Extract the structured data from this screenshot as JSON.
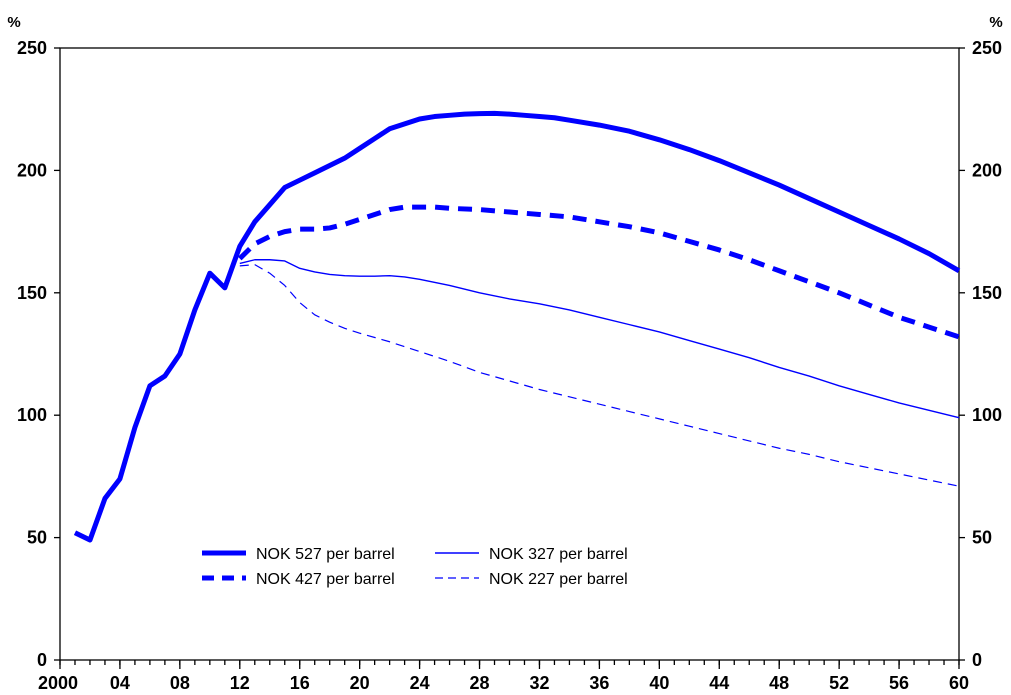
{
  "chart_data": {
    "type": "line",
    "y_unit_left": "%",
    "y_unit_right": "%",
    "ylim": [
      0,
      250
    ],
    "y_ticks": [
      0,
      50,
      100,
      150,
      200,
      250
    ],
    "y_tick_labels": [
      "0",
      "50",
      "100",
      "150",
      "200",
      "250"
    ],
    "xlim": [
      2000,
      2060
    ],
    "x_ticks": [
      2000,
      2004,
      2008,
      2012,
      2016,
      2020,
      2024,
      2028,
      2032,
      2036,
      2040,
      2044,
      2048,
      2052,
      2056,
      2060
    ],
    "x_tick_labels": [
      "2000",
      "04",
      "08",
      "12",
      "16",
      "20",
      "24",
      "28",
      "32",
      "36",
      "40",
      "44",
      "48",
      "52",
      "56",
      "60"
    ],
    "grid": false,
    "legend_position": "lower-left",
    "series": [
      {
        "name": "NOK 527 per barrel",
        "style": "solid-thick",
        "color": "#0000ff",
        "points": [
          [
            2001,
            52
          ],
          [
            2002,
            49
          ],
          [
            2003,
            66
          ],
          [
            2004,
            74
          ],
          [
            2005,
            95
          ],
          [
            2006,
            112
          ],
          [
            2007,
            116
          ],
          [
            2008,
            125
          ],
          [
            2009,
            143
          ],
          [
            2010,
            158
          ],
          [
            2011,
            152
          ],
          [
            2012,
            169
          ],
          [
            2013,
            179
          ],
          [
            2014,
            186
          ],
          [
            2015,
            193
          ],
          [
            2016,
            196
          ],
          [
            2017,
            199
          ],
          [
            2018,
            202
          ],
          [
            2019,
            205
          ],
          [
            2020,
            209
          ],
          [
            2021,
            213
          ],
          [
            2022,
            217
          ],
          [
            2023,
            219
          ],
          [
            2024,
            221
          ],
          [
            2025,
            222
          ],
          [
            2026,
            222.5
          ],
          [
            2027,
            223
          ],
          [
            2028,
            223.2
          ],
          [
            2029,
            223.3
          ],
          [
            2030,
            223
          ],
          [
            2031,
            222.5
          ],
          [
            2032,
            222
          ],
          [
            2033,
            221.5
          ],
          [
            2034,
            220.5
          ],
          [
            2036,
            218.5
          ],
          [
            2038,
            216
          ],
          [
            2040,
            212.5
          ],
          [
            2042,
            208.5
          ],
          [
            2044,
            204
          ],
          [
            2046,
            199
          ],
          [
            2048,
            194
          ],
          [
            2050,
            188.5
          ],
          [
            2052,
            183
          ],
          [
            2054,
            177.5
          ],
          [
            2056,
            172
          ],
          [
            2058,
            166
          ],
          [
            2060,
            159
          ]
        ]
      },
      {
        "name": "NOK 427 per barrel",
        "style": "dashed-thick",
        "color": "#0000ff",
        "points": [
          [
            2012,
            164
          ],
          [
            2013,
            170
          ],
          [
            2014,
            173
          ],
          [
            2015,
            175
          ],
          [
            2016,
            176
          ],
          [
            2017,
            176
          ],
          [
            2018,
            176.5
          ],
          [
            2019,
            178
          ],
          [
            2020,
            180
          ],
          [
            2021,
            182
          ],
          [
            2022,
            184
          ],
          [
            2023,
            185
          ],
          [
            2024,
            185
          ],
          [
            2025,
            185
          ],
          [
            2026,
            184.5
          ],
          [
            2028,
            184
          ],
          [
            2030,
            183
          ],
          [
            2032,
            182
          ],
          [
            2034,
            181
          ],
          [
            2036,
            179
          ],
          [
            2038,
            177
          ],
          [
            2040,
            174.5
          ],
          [
            2042,
            171
          ],
          [
            2044,
            167.5
          ],
          [
            2046,
            163.5
          ],
          [
            2048,
            159
          ],
          [
            2050,
            154.5
          ],
          [
            2052,
            150
          ],
          [
            2054,
            145
          ],
          [
            2056,
            140
          ],
          [
            2058,
            136
          ],
          [
            2060,
            132
          ]
        ]
      },
      {
        "name": "NOK 327 per barrel",
        "style": "solid-thin",
        "color": "#0000ff",
        "points": [
          [
            2012,
            162
          ],
          [
            2013,
            163.5
          ],
          [
            2014,
            163.5
          ],
          [
            2015,
            163
          ],
          [
            2016,
            160
          ],
          [
            2017,
            158.5
          ],
          [
            2018,
            157.5
          ],
          [
            2019,
            157
          ],
          [
            2020,
            156.8
          ],
          [
            2021,
            156.8
          ],
          [
            2022,
            157
          ],
          [
            2023,
            156.5
          ],
          [
            2024,
            155.5
          ],
          [
            2026,
            153
          ],
          [
            2028,
            150
          ],
          [
            2030,
            147.5
          ],
          [
            2032,
            145.5
          ],
          [
            2034,
            143
          ],
          [
            2036,
            140
          ],
          [
            2038,
            137
          ],
          [
            2040,
            134
          ],
          [
            2042,
            130.5
          ],
          [
            2044,
            127
          ],
          [
            2046,
            123.5
          ],
          [
            2048,
            119.5
          ],
          [
            2050,
            116
          ],
          [
            2052,
            112
          ],
          [
            2054,
            108.5
          ],
          [
            2056,
            105
          ],
          [
            2058,
            102
          ],
          [
            2060,
            99
          ]
        ]
      },
      {
        "name": "NOK 227 per barrel",
        "style": "dashed-thin",
        "color": "#0000ff",
        "points": [
          [
            2012,
            161
          ],
          [
            2013,
            161.5
          ],
          [
            2014,
            158
          ],
          [
            2015,
            153
          ],
          [
            2016,
            146
          ],
          [
            2017,
            141
          ],
          [
            2018,
            138
          ],
          [
            2019,
            135.5
          ],
          [
            2020,
            133.5
          ],
          [
            2022,
            130
          ],
          [
            2024,
            126
          ],
          [
            2026,
            122
          ],
          [
            2028,
            117.5
          ],
          [
            2030,
            114
          ],
          [
            2032,
            110.5
          ],
          [
            2034,
            107.5
          ],
          [
            2036,
            104.5
          ],
          [
            2038,
            101.5
          ],
          [
            2040,
            98.5
          ],
          [
            2042,
            95.5
          ],
          [
            2044,
            92.5
          ],
          [
            2046,
            89.5
          ],
          [
            2048,
            86.5
          ],
          [
            2050,
            84
          ],
          [
            2052,
            81
          ],
          [
            2054,
            78.5
          ],
          [
            2056,
            76
          ],
          [
            2058,
            73.5
          ],
          [
            2060,
            71
          ]
        ]
      }
    ]
  }
}
